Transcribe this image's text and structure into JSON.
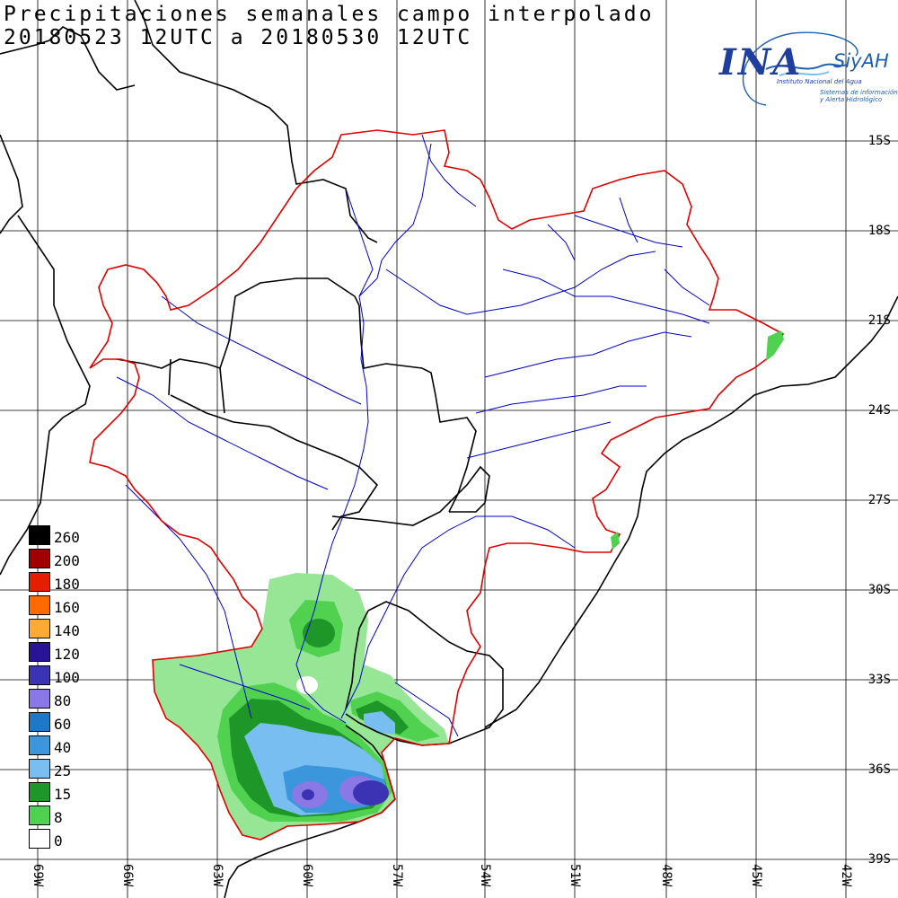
{
  "title": {
    "line1": "Precipitaciones semanales campo interpolado",
    "line2": "20180523 12UTC a 20180530 12UTC"
  },
  "logo": {
    "main": "INA",
    "brand": "SiyAH",
    "subtitle": "Instituto Nacional del Agua",
    "tagline": "Sistemas de información y Alerta Hidrológico",
    "colors": {
      "primary": "#1f3f9f",
      "secondary": "#1d5fb3"
    }
  },
  "map": {
    "lat_labels": [
      "15S",
      "18S",
      "21S",
      "24S",
      "27S",
      "30S",
      "33S",
      "36S",
      "39S"
    ],
    "lon_labels": [
      "69W",
      "66W",
      "63W",
      "60W",
      "57W",
      "54W",
      "51W",
      "48W",
      "45W",
      "42W"
    ],
    "colors": {
      "country_border": "#000000",
      "basin_border": "#e00000",
      "rivers": "#0000cc",
      "coast": "#000000"
    }
  },
  "legend": {
    "items": [
      {
        "label": "260",
        "color": "#000000"
      },
      {
        "label": "200",
        "color": "#a00000"
      },
      {
        "label": "180",
        "color": "#e61e00"
      },
      {
        "label": "160",
        "color": "#ff6a00"
      },
      {
        "label": "140",
        "color": "#ffaa33"
      },
      {
        "label": "120",
        "color": "#2a1496"
      },
      {
        "label": "100",
        "color": "#3c32b4"
      },
      {
        "label": "80",
        "color": "#8a78e6"
      },
      {
        "label": "60",
        "color": "#1e78c8"
      },
      {
        "label": "40",
        "color": "#3c96dc"
      },
      {
        "label": "25",
        "color": "#78bef0"
      },
      {
        "label": "15",
        "color": "#1e9628"
      },
      {
        "label": "8",
        "color": "#50d250"
      },
      {
        "label": "0",
        "color": "#ffffff"
      }
    ],
    "precip_fill_colors": {
      "light_green": "#96e696",
      "green": "#50d250",
      "dark_green": "#1e9628",
      "light_blue": "#78bef0",
      "blue": "#3c96dc",
      "violet": "#8a78e6",
      "indigo": "#3c32b4"
    }
  }
}
